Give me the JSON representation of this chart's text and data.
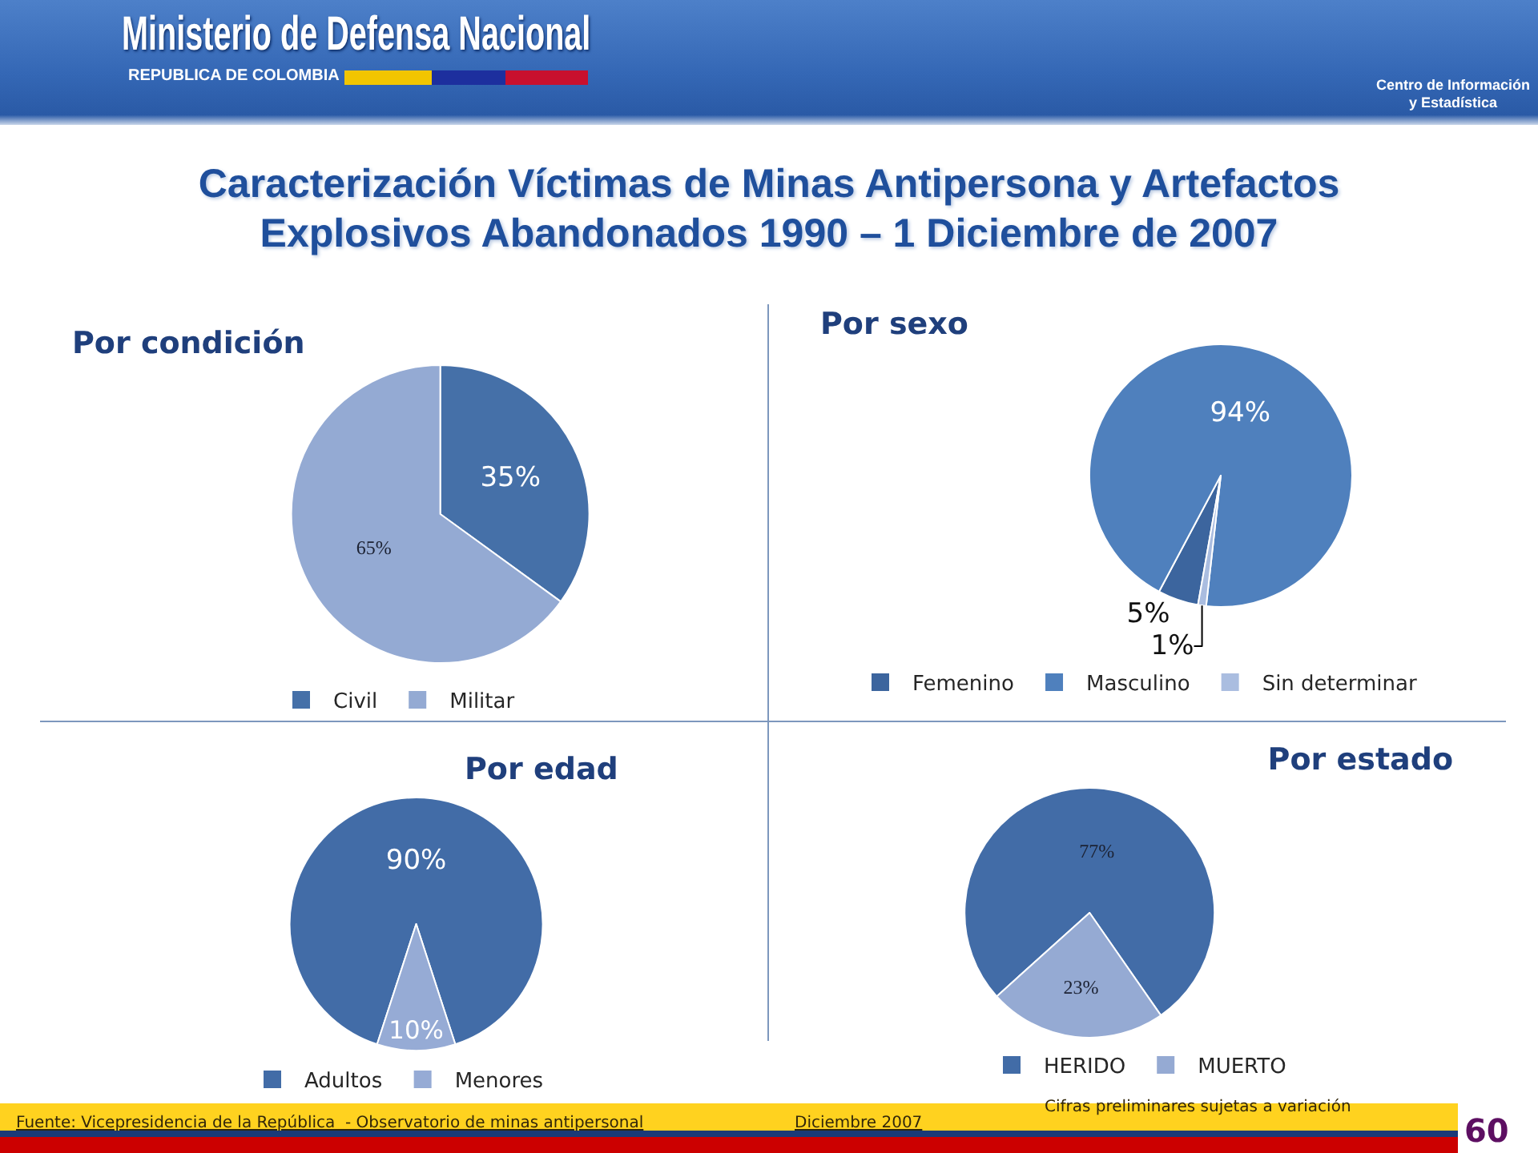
{
  "chart_data": [
    {
      "type": "other",
      "title": "Caracterización Víctimas de Minas Antipersona y Artefactos Explosivos Abandonados 1990 – 1 Diciembre de 2007",
      "annotations": [
        "Ministerio de Defensa Nacional",
        "REPUBLICA DE COLOMBIA",
        "Centro de Información\ny Estadística"
      ]
    },
    {
      "type": "pie",
      "title": "Por condición",
      "categories": [
        "Civil",
        "Militar"
      ],
      "values": [
        35,
        65
      ],
      "colors": [
        "#4570a8",
        "#94aad3"
      ],
      "value_labels": [
        "35%",
        "65%"
      ],
      "legend": "bottom"
    },
    {
      "type": "pie",
      "title": "Por sexo",
      "categories": [
        "Femenino",
        "Masculino",
        "Sin determinar"
      ],
      "values": [
        5,
        94,
        1
      ],
      "colors": [
        "#3c659e",
        "#4f80bd",
        "#aabde0"
      ],
      "value_labels": [
        "5%",
        "94%",
        "1%"
      ],
      "legend": "bottom"
    },
    {
      "type": "pie",
      "title": "Por edad",
      "categories": [
        "Adultos",
        "Menores"
      ],
      "values": [
        90,
        10
      ],
      "colors": [
        "#426ca7",
        "#96abd5"
      ],
      "value_labels": [
        "90%",
        "10%"
      ],
      "legend": "bottom"
    },
    {
      "type": "pie",
      "title": "Por estado",
      "categories": [
        "HERIDO",
        "MUERTO"
      ],
      "values": [
        77,
        23
      ],
      "colors": [
        "#426ca7",
        "#95aad3"
      ],
      "value_labels": [
        "77%",
        "23%"
      ],
      "legend": "bottom"
    },
    {
      "type": "other",
      "annotations": [
        "Fuente: Vicepresidencia de la República  - Observatorio de minas antipersonal",
        "Diciembre 2007",
        "Cifras preliminares sujetas a variación",
        "60"
      ]
    }
  ]
}
